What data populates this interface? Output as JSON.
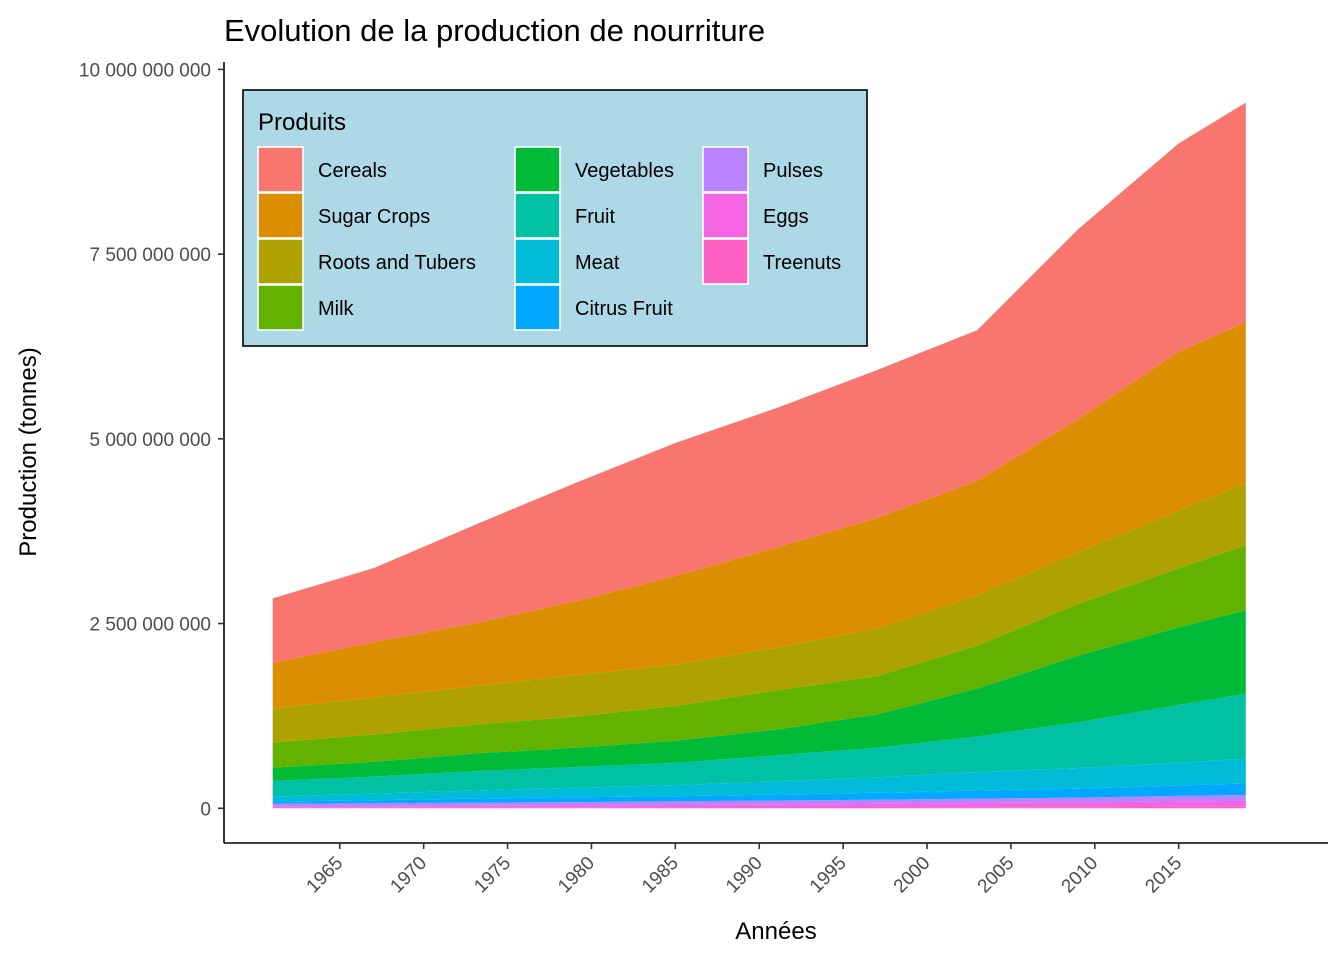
{
  "chart_data": {
    "type": "area",
    "stacked": true,
    "title": "Evolution de la production de nourriture",
    "xlabel": "Années",
    "ylabel": "Production (tonnes)",
    "xlim": [
      1958.1,
      2023.9
    ],
    "ylim": [
      -470000000,
      10100000000
    ],
    "x_ticks": [
      1965,
      1970,
      1975,
      1980,
      1985,
      1990,
      1995,
      2000,
      2005,
      2010,
      2015
    ],
    "x_tick_labels": [
      "1965",
      "1970",
      "1975",
      "1980",
      "1985",
      "1990",
      "1995",
      "2000",
      "2005",
      "2010",
      "2015"
    ],
    "y_ticks": [
      0,
      2500000000,
      5000000000,
      7500000000,
      10000000000
    ],
    "y_tick_labels": [
      "0",
      "2 500 000 000",
      "5 000 000 000",
      "7 500 000 000",
      "10 000 000 000"
    ],
    "legend": {
      "title": "Produits",
      "placement": "top-left",
      "background": "#add8e6",
      "columns": [
        [
          "Cereals",
          "Sugar Crops",
          "Roots and Tubers",
          "Milk"
        ],
        [
          "Vegetables",
          "Fruit",
          "Meat",
          "Citrus Fruit"
        ],
        [
          "Pulses",
          "Eggs",
          "Treenuts"
        ]
      ]
    },
    "x": [
      1961,
      1967,
      1973,
      1979,
      1985,
      1991,
      1997,
      2003,
      2009,
      2015,
      2019
    ],
    "series": [
      {
        "name": "Treenuts",
        "color": "#ff61c3",
        "values": [
          5000000,
          6000000,
          7000000,
          8000000,
          9000000,
          10000000,
          11000000,
          13000000,
          15000000,
          18000000,
          20000000
        ]
      },
      {
        "name": "Eggs",
        "color": "#f564e3",
        "values": [
          15000000,
          20000000,
          25000000,
          30000000,
          35000000,
          40000000,
          48000000,
          58000000,
          65000000,
          75000000,
          80000000
        ]
      },
      {
        "name": "Pulses",
        "color": "#b983ff",
        "values": [
          40000000,
          42000000,
          44000000,
          46000000,
          50000000,
          55000000,
          55000000,
          60000000,
          65000000,
          75000000,
          80000000
        ]
      },
      {
        "name": "Citrus Fruit",
        "color": "#00a9ff",
        "values": [
          30000000,
          40000000,
          55000000,
          65000000,
          70000000,
          80000000,
          95000000,
          110000000,
          120000000,
          140000000,
          155000000
        ]
      },
      {
        "name": "Meat",
        "color": "#00bcd8",
        "values": [
          70000000,
          90000000,
          110000000,
          130000000,
          150000000,
          180000000,
          210000000,
          250000000,
          280000000,
          310000000,
          335000000
        ]
      },
      {
        "name": "Fruit",
        "color": "#00c1a3",
        "values": [
          210000000,
          230000000,
          260000000,
          280000000,
          300000000,
          350000000,
          400000000,
          480000000,
          620000000,
          780000000,
          880000000
        ]
      },
      {
        "name": "Vegetables",
        "color": "#00ba38",
        "values": [
          180000000,
          200000000,
          240000000,
          260000000,
          300000000,
          350000000,
          450000000,
          650000000,
          900000000,
          1050000000,
          1130000000
        ]
      },
      {
        "name": "Milk",
        "color": "#64b200",
        "values": [
          340000000,
          370000000,
          390000000,
          420000000,
          470000000,
          530000000,
          520000000,
          580000000,
          700000000,
          800000000,
          880000000
        ]
      },
      {
        "name": "Roots and Tubers",
        "color": "#aea200",
        "values": [
          460000000,
          500000000,
          520000000,
          560000000,
          560000000,
          580000000,
          640000000,
          680000000,
          700000000,
          780000000,
          840000000
        ]
      },
      {
        "name": "Sugar Crops",
        "color": "#db8e00",
        "values": [
          620000000,
          750000000,
          850000000,
          1000000000,
          1200000000,
          1350000000,
          1500000000,
          1550000000,
          1800000000,
          2150000000,
          2180000000
        ]
      },
      {
        "name": "Cereals",
        "color": "#f8766d",
        "values": [
          870000000,
          1000000000,
          1330000000,
          1600000000,
          1800000000,
          1890000000,
          2000000000,
          2040000000,
          2570000000,
          2820000000,
          2970000000
        ]
      }
    ]
  }
}
